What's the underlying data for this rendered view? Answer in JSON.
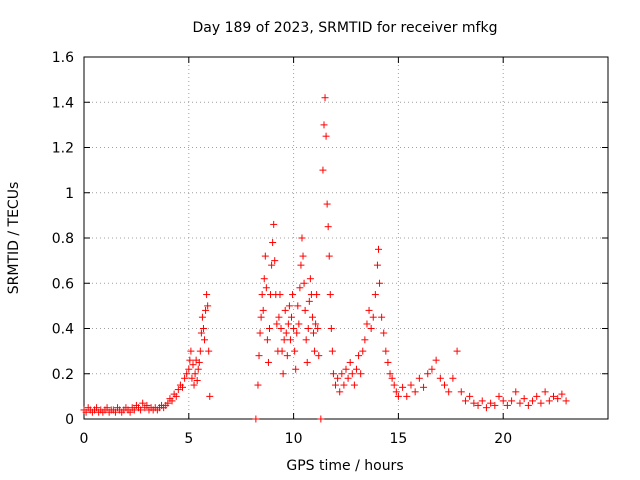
{
  "chart_data": {
    "type": "scatter",
    "title": "Day 189 of 2023, SRMTID for receiver mfkg",
    "xlabel": "GPS time / hours",
    "ylabel": "SRMTID / TECUs",
    "xlim": [
      0,
      25
    ],
    "ylim": [
      0,
      1.6
    ],
    "xticks": [
      0,
      5,
      10,
      15,
      20
    ],
    "xtick_labels": [
      "0",
      "5",
      "10",
      "15",
      "20"
    ],
    "yticks": [
      0,
      0.2,
      0.4,
      0.6,
      0.8,
      1.0,
      1.2,
      1.4,
      1.6
    ],
    "ytick_labels": [
      "0",
      "0.2",
      "0.4",
      "0.6",
      "0.8",
      "1",
      "1.2",
      "1.4",
      "1.6"
    ],
    "grid": true,
    "marker": "+",
    "color": "#ff0000",
    "series": [
      {
        "name": "SRMTID",
        "points": [
          [
            0.0,
            0.04
          ],
          [
            0.1,
            0.03
          ],
          [
            0.2,
            0.05
          ],
          [
            0.3,
            0.04
          ],
          [
            0.4,
            0.03
          ],
          [
            0.5,
            0.04
          ],
          [
            0.6,
            0.05
          ],
          [
            0.7,
            0.03
          ],
          [
            0.8,
            0.04
          ],
          [
            0.9,
            0.03
          ],
          [
            1.0,
            0.04
          ],
          [
            1.1,
            0.05
          ],
          [
            1.2,
            0.03
          ],
          [
            1.3,
            0.04
          ],
          [
            1.4,
            0.04
          ],
          [
            1.5,
            0.03
          ],
          [
            1.6,
            0.05
          ],
          [
            1.7,
            0.04
          ],
          [
            1.8,
            0.03
          ],
          [
            1.9,
            0.04
          ],
          [
            2.0,
            0.05
          ],
          [
            2.1,
            0.04
          ],
          [
            2.2,
            0.03
          ],
          [
            2.3,
            0.05
          ],
          [
            2.4,
            0.04
          ],
          [
            2.5,
            0.06
          ],
          [
            2.6,
            0.05
          ],
          [
            2.7,
            0.04
          ],
          [
            2.8,
            0.07
          ],
          [
            2.9,
            0.05
          ],
          [
            3.0,
            0.06
          ],
          [
            3.1,
            0.04
          ],
          [
            3.2,
            0.05
          ],
          [
            3.3,
            0.04
          ],
          [
            3.4,
            0.05
          ],
          [
            3.5,
            0.04
          ],
          [
            3.6,
            0.05
          ],
          [
            3.7,
            0.06
          ],
          [
            3.8,
            0.05
          ],
          [
            3.9,
            0.06
          ],
          [
            4.0,
            0.07
          ],
          [
            4.1,
            0.09
          ],
          [
            4.2,
            0.08
          ],
          [
            4.3,
            0.11
          ],
          [
            4.4,
            0.1
          ],
          [
            4.5,
            0.13
          ],
          [
            4.6,
            0.15
          ],
          [
            4.7,
            0.14
          ],
          [
            4.8,
            0.18
          ],
          [
            4.9,
            0.2
          ],
          [
            5.0,
            0.22
          ],
          [
            5.05,
            0.26
          ],
          [
            5.1,
            0.3
          ],
          [
            5.15,
            0.18
          ],
          [
            5.2,
            0.24
          ],
          [
            5.25,
            0.15
          ],
          [
            5.3,
            0.2
          ],
          [
            5.35,
            0.26
          ],
          [
            5.4,
            0.17
          ],
          [
            5.45,
            0.22
          ],
          [
            5.5,
            0.25
          ],
          [
            5.55,
            0.3
          ],
          [
            5.6,
            0.38
          ],
          [
            5.65,
            0.45
          ],
          [
            5.7,
            0.4
          ],
          [
            5.75,
            0.35
          ],
          [
            5.8,
            0.48
          ],
          [
            5.85,
            0.55
          ],
          [
            5.9,
            0.5
          ],
          [
            5.95,
            0.3
          ],
          [
            6.0,
            0.1
          ],
          [
            8.2,
            0.0
          ],
          [
            8.3,
            0.15
          ],
          [
            8.35,
            0.28
          ],
          [
            8.4,
            0.38
          ],
          [
            8.45,
            0.45
          ],
          [
            8.5,
            0.55
          ],
          [
            8.55,
            0.48
          ],
          [
            8.6,
            0.62
          ],
          [
            8.65,
            0.72
          ],
          [
            8.7,
            0.58
          ],
          [
            8.75,
            0.35
          ],
          [
            8.8,
            0.25
          ],
          [
            8.85,
            0.4
          ],
          [
            8.9,
            0.55
          ],
          [
            8.95,
            0.68
          ],
          [
            9.0,
            0.78
          ],
          [
            9.05,
            0.86
          ],
          [
            9.1,
            0.7
          ],
          [
            9.15,
            0.55
          ],
          [
            9.2,
            0.42
          ],
          [
            9.25,
            0.3
          ],
          [
            9.3,
            0.45
          ],
          [
            9.35,
            0.55
          ],
          [
            9.4,
            0.4
          ],
          [
            9.45,
            0.3
          ],
          [
            9.5,
            0.2
          ],
          [
            9.55,
            0.35
          ],
          [
            9.6,
            0.48
          ],
          [
            9.65,
            0.38
          ],
          [
            9.7,
            0.28
          ],
          [
            9.75,
            0.42
          ],
          [
            9.8,
            0.5
          ],
          [
            9.85,
            0.35
          ],
          [
            9.9,
            0.45
          ],
          [
            9.95,
            0.55
          ],
          [
            10.0,
            0.4
          ],
          [
            10.05,
            0.3
          ],
          [
            10.1,
            0.22
          ],
          [
            10.15,
            0.38
          ],
          [
            10.2,
            0.5
          ],
          [
            10.25,
            0.42
          ],
          [
            10.3,
            0.58
          ],
          [
            10.35,
            0.68
          ],
          [
            10.4,
            0.8
          ],
          [
            10.45,
            0.72
          ],
          [
            10.5,
            0.6
          ],
          [
            10.55,
            0.48
          ],
          [
            10.6,
            0.35
          ],
          [
            10.65,
            0.25
          ],
          [
            10.7,
            0.4
          ],
          [
            10.75,
            0.52
          ],
          [
            10.8,
            0.62
          ],
          [
            10.85,
            0.55
          ],
          [
            10.9,
            0.45
          ],
          [
            10.95,
            0.38
          ],
          [
            11.0,
            0.3
          ],
          [
            11.05,
            0.42
          ],
          [
            11.1,
            0.55
          ],
          [
            11.15,
            0.4
          ],
          [
            11.2,
            0.28
          ],
          [
            11.3,
            0.0
          ],
          [
            11.4,
            1.1
          ],
          [
            11.45,
            1.3
          ],
          [
            11.5,
            1.42
          ],
          [
            11.55,
            1.25
          ],
          [
            11.6,
            0.95
          ],
          [
            11.65,
            0.85
          ],
          [
            11.7,
            0.72
          ],
          [
            11.75,
            0.55
          ],
          [
            11.8,
            0.4
          ],
          [
            11.85,
            0.3
          ],
          [
            11.9,
            0.2
          ],
          [
            12.0,
            0.15
          ],
          [
            12.1,
            0.18
          ],
          [
            12.2,
            0.12
          ],
          [
            12.3,
            0.2
          ],
          [
            12.4,
            0.15
          ],
          [
            12.5,
            0.22
          ],
          [
            12.6,
            0.18
          ],
          [
            12.7,
            0.25
          ],
          [
            12.8,
            0.2
          ],
          [
            12.9,
            0.15
          ],
          [
            13.0,
            0.22
          ],
          [
            13.1,
            0.28
          ],
          [
            13.2,
            0.2
          ],
          [
            13.3,
            0.3
          ],
          [
            13.4,
            0.35
          ],
          [
            13.5,
            0.42
          ],
          [
            13.6,
            0.48
          ],
          [
            13.7,
            0.4
          ],
          [
            13.8,
            0.45
          ],
          [
            13.9,
            0.55
          ],
          [
            14.0,
            0.68
          ],
          [
            14.05,
            0.75
          ],
          [
            14.1,
            0.6
          ],
          [
            14.2,
            0.45
          ],
          [
            14.3,
            0.38
          ],
          [
            14.4,
            0.3
          ],
          [
            14.5,
            0.25
          ],
          [
            14.6,
            0.2
          ],
          [
            14.7,
            0.18
          ],
          [
            14.8,
            0.15
          ],
          [
            14.9,
            0.12
          ],
          [
            15.0,
            0.1
          ],
          [
            15.2,
            0.14
          ],
          [
            15.4,
            0.1
          ],
          [
            15.6,
            0.15
          ],
          [
            15.8,
            0.12
          ],
          [
            16.0,
            0.18
          ],
          [
            16.2,
            0.14
          ],
          [
            16.4,
            0.2
          ],
          [
            16.6,
            0.22
          ],
          [
            16.8,
            0.26
          ],
          [
            17.0,
            0.18
          ],
          [
            17.2,
            0.15
          ],
          [
            17.4,
            0.12
          ],
          [
            17.6,
            0.18
          ],
          [
            17.8,
            0.3
          ],
          [
            18.0,
            0.12
          ],
          [
            18.2,
            0.08
          ],
          [
            18.4,
            0.1
          ],
          [
            18.6,
            0.07
          ],
          [
            18.8,
            0.06
          ],
          [
            19.0,
            0.08
          ],
          [
            19.2,
            0.05
          ],
          [
            19.4,
            0.07
          ],
          [
            19.6,
            0.06
          ],
          [
            19.8,
            0.1
          ],
          [
            20.0,
            0.08
          ],
          [
            20.2,
            0.06
          ],
          [
            20.4,
            0.08
          ],
          [
            20.6,
            0.12
          ],
          [
            20.8,
            0.07
          ],
          [
            21.0,
            0.09
          ],
          [
            21.2,
            0.06
          ],
          [
            21.4,
            0.08
          ],
          [
            21.6,
            0.1
          ],
          [
            21.8,
            0.07
          ],
          [
            22.0,
            0.12
          ],
          [
            22.2,
            0.08
          ],
          [
            22.4,
            0.1
          ],
          [
            22.6,
            0.09
          ],
          [
            22.8,
            0.11
          ],
          [
            23.0,
            0.08
          ]
        ]
      }
    ]
  }
}
